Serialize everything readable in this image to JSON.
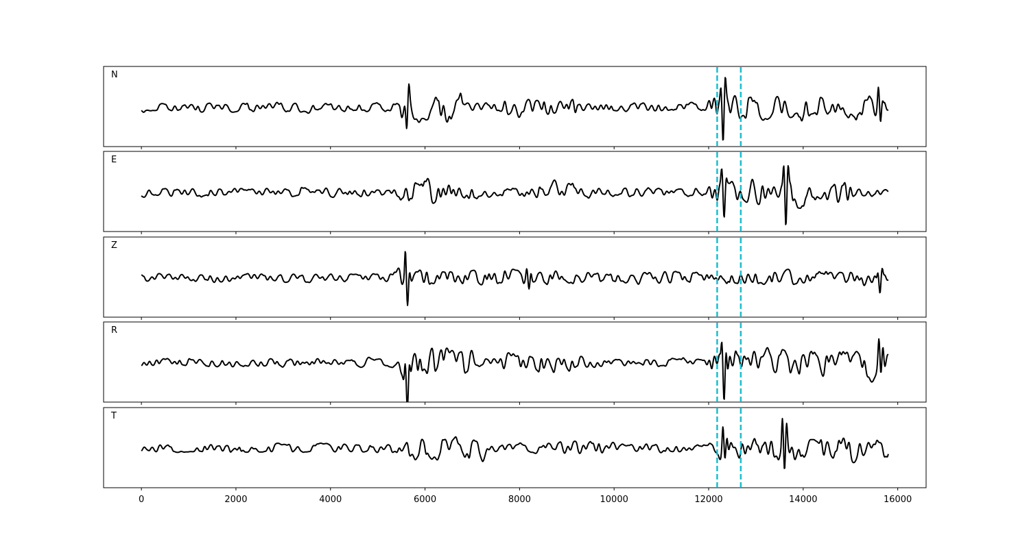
{
  "chart_data": {
    "type": "line",
    "title": "",
    "xlabel": "",
    "ylabel": "",
    "xlim": [
      -800,
      16600
    ],
    "xticks": [
      0,
      2000,
      4000,
      6000,
      8000,
      10000,
      12000,
      14000,
      16000
    ],
    "xtick_labels": [
      "0",
      "2000",
      "4000",
      "6000",
      "8000",
      "10000",
      "12000",
      "14000",
      "16000"
    ],
    "n_samples": 15800,
    "line_color": "#000000",
    "marker_color": "#17becf",
    "markers": [
      12180,
      12680
    ],
    "grid": false,
    "panels": [
      {
        "label": "N",
        "events": [
          {
            "x": 5570,
            "amps": [
              0.3,
              -0.75,
              0.45
            ]
          },
          {
            "x": 12260,
            "amps": [
              0.5,
              -1.0,
              0.65
            ]
          },
          {
            "x": 15590,
            "amps": [
              0.5,
              -0.55,
              0.35
            ]
          }
        ],
        "windows": [
          {
            "start": 5450,
            "end": 6800,
            "amp": 0.3
          },
          {
            "start": 7600,
            "end": 9200,
            "amp": 0.2
          },
          {
            "start": 12000,
            "end": 15800,
            "amp": 0.28
          }
        ]
      },
      {
        "label": "E",
        "events": [
          {
            "x": 12280,
            "amps": [
              0.4,
              -0.6,
              0.35
            ]
          },
          {
            "x": 13590,
            "amps": [
              0.85,
              -0.95,
              0.6
            ]
          }
        ],
        "windows": [
          {
            "start": 5450,
            "end": 7200,
            "amp": 0.25
          },
          {
            "start": 8000,
            "end": 9600,
            "amp": 0.18
          },
          {
            "start": 12000,
            "end": 15000,
            "amp": 0.3
          }
        ]
      },
      {
        "label": "Z",
        "events": [
          {
            "x": 5585,
            "amps": [
              1.0,
              -0.7,
              0.3
            ]
          },
          {
            "x": 8150,
            "amps": [
              0.25,
              -0.3,
              0.2
            ]
          },
          {
            "x": 15580,
            "amps": [
              0.3,
              -0.35,
              0.25
            ]
          }
        ],
        "windows": [
          {
            "start": 5300,
            "end": 8600,
            "amp": 0.18
          },
          {
            "start": 8600,
            "end": 12300,
            "amp": 0.14
          },
          {
            "start": 12300,
            "end": 15800,
            "amp": 0.16
          }
        ]
      },
      {
        "label": "R",
        "events": [
          {
            "x": 5580,
            "amps": [
              0.5,
              -0.85,
              0.5
            ]
          },
          {
            "x": 12280,
            "amps": [
              0.75,
              -0.9,
              0.6
            ]
          },
          {
            "x": 15600,
            "amps": [
              0.5,
              -0.55,
              0.4
            ]
          }
        ],
        "windows": [
          {
            "start": 5450,
            "end": 7000,
            "amp": 0.35
          },
          {
            "start": 7600,
            "end": 9400,
            "amp": 0.25
          },
          {
            "start": 12000,
            "end": 15800,
            "amp": 0.3
          }
        ]
      },
      {
        "label": "T",
        "events": [
          {
            "x": 12300,
            "amps": [
              0.7,
              -0.45,
              0.3
            ]
          },
          {
            "x": 13560,
            "amps": [
              0.9,
              -0.9,
              0.55
            ]
          }
        ],
        "windows": [
          {
            "start": 5600,
            "end": 7300,
            "amp": 0.25
          },
          {
            "start": 8200,
            "end": 10000,
            "amp": 0.16
          },
          {
            "start": 12000,
            "end": 15800,
            "amp": 0.26
          }
        ]
      }
    ]
  }
}
